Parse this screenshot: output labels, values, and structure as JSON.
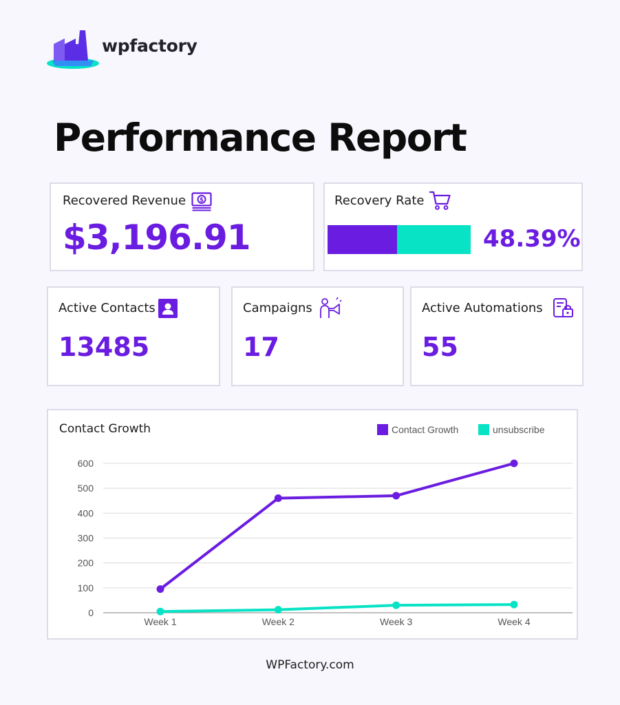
{
  "brand": {
    "name": "wpfactory",
    "colors": {
      "primary": "#6a1ce0",
      "accent": "#08e3c6",
      "text": "#111111",
      "border": "#dddbe7"
    }
  },
  "page": {
    "title": "Performance Report"
  },
  "cards": {
    "revenue": {
      "label": "Recovered Revenue",
      "value": "$3,196.91",
      "icon": "money-bill-icon"
    },
    "rate": {
      "label": "Recovery Rate",
      "value": "48.39%",
      "fraction": 0.4839,
      "icon": "shopping-cart-icon"
    },
    "contacts": {
      "label": "Active Contacts",
      "value": "13485",
      "icon": "contact-card-icon"
    },
    "campaigns": {
      "label": "Campaigns",
      "value": "17",
      "icon": "megaphone-icon"
    },
    "automations": {
      "label": "Active Automations",
      "value": "55",
      "icon": "automation-icon"
    }
  },
  "chart_data": {
    "type": "line",
    "title": "Contact Growth",
    "categories": [
      "Week 1",
      "Week 2",
      "Week 3",
      "Week 4"
    ],
    "series": [
      {
        "name": "Contact Growth",
        "color": "#6a1ce0",
        "values": [
          95,
          460,
          470,
          600
        ]
      },
      {
        "name": "unsubscribe",
        "color": "#08e3c6",
        "values": [
          5,
          12,
          30,
          33
        ]
      }
    ],
    "ylim": [
      0,
      600
    ],
    "yticks": [
      "0",
      "100",
      "200",
      "300",
      "400",
      "500",
      "600"
    ],
    "grid": true,
    "legend": "top-right",
    "xlabel": "",
    "ylabel": ""
  },
  "footer": {
    "text": "WPFactory.com"
  }
}
